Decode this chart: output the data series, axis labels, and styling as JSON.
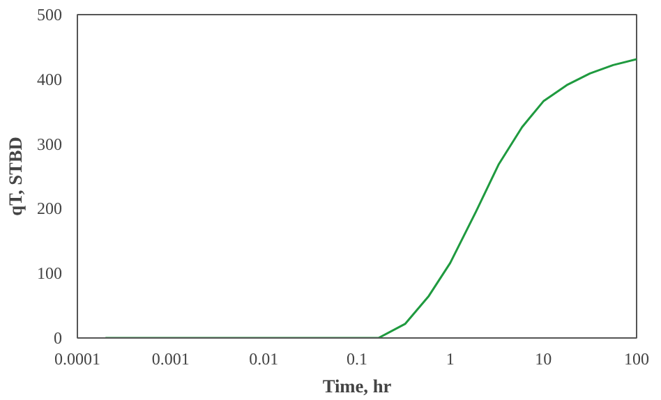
{
  "chart_data": {
    "type": "line",
    "xlabel": "Time, hr",
    "ylabel": "qT, STBD",
    "log": "x",
    "xlim": [
      0.0001,
      100
    ],
    "xticks": [
      0.0001,
      0.001,
      0.01,
      0.1,
      1,
      10,
      100
    ],
    "ylim": [
      0,
      500
    ],
    "yticks": [
      0,
      100,
      200,
      300,
      400,
      500
    ],
    "grid": false,
    "marker": "none",
    "line_style": "solid",
    "series": [
      {
        "color": "#1f9a3f",
        "x": [
          0.0002,
          0.001,
          0.01,
          0.1,
          0.17,
          0.33,
          0.59,
          1,
          1.9,
          3.3,
          5.9,
          10,
          17.8,
          31.6,
          56,
          100
        ],
        "values": [
          0,
          0,
          0,
          0,
          0,
          22,
          65,
          116,
          196,
          268,
          326,
          366,
          391,
          409,
          422,
          431
        ]
      }
    ]
  }
}
